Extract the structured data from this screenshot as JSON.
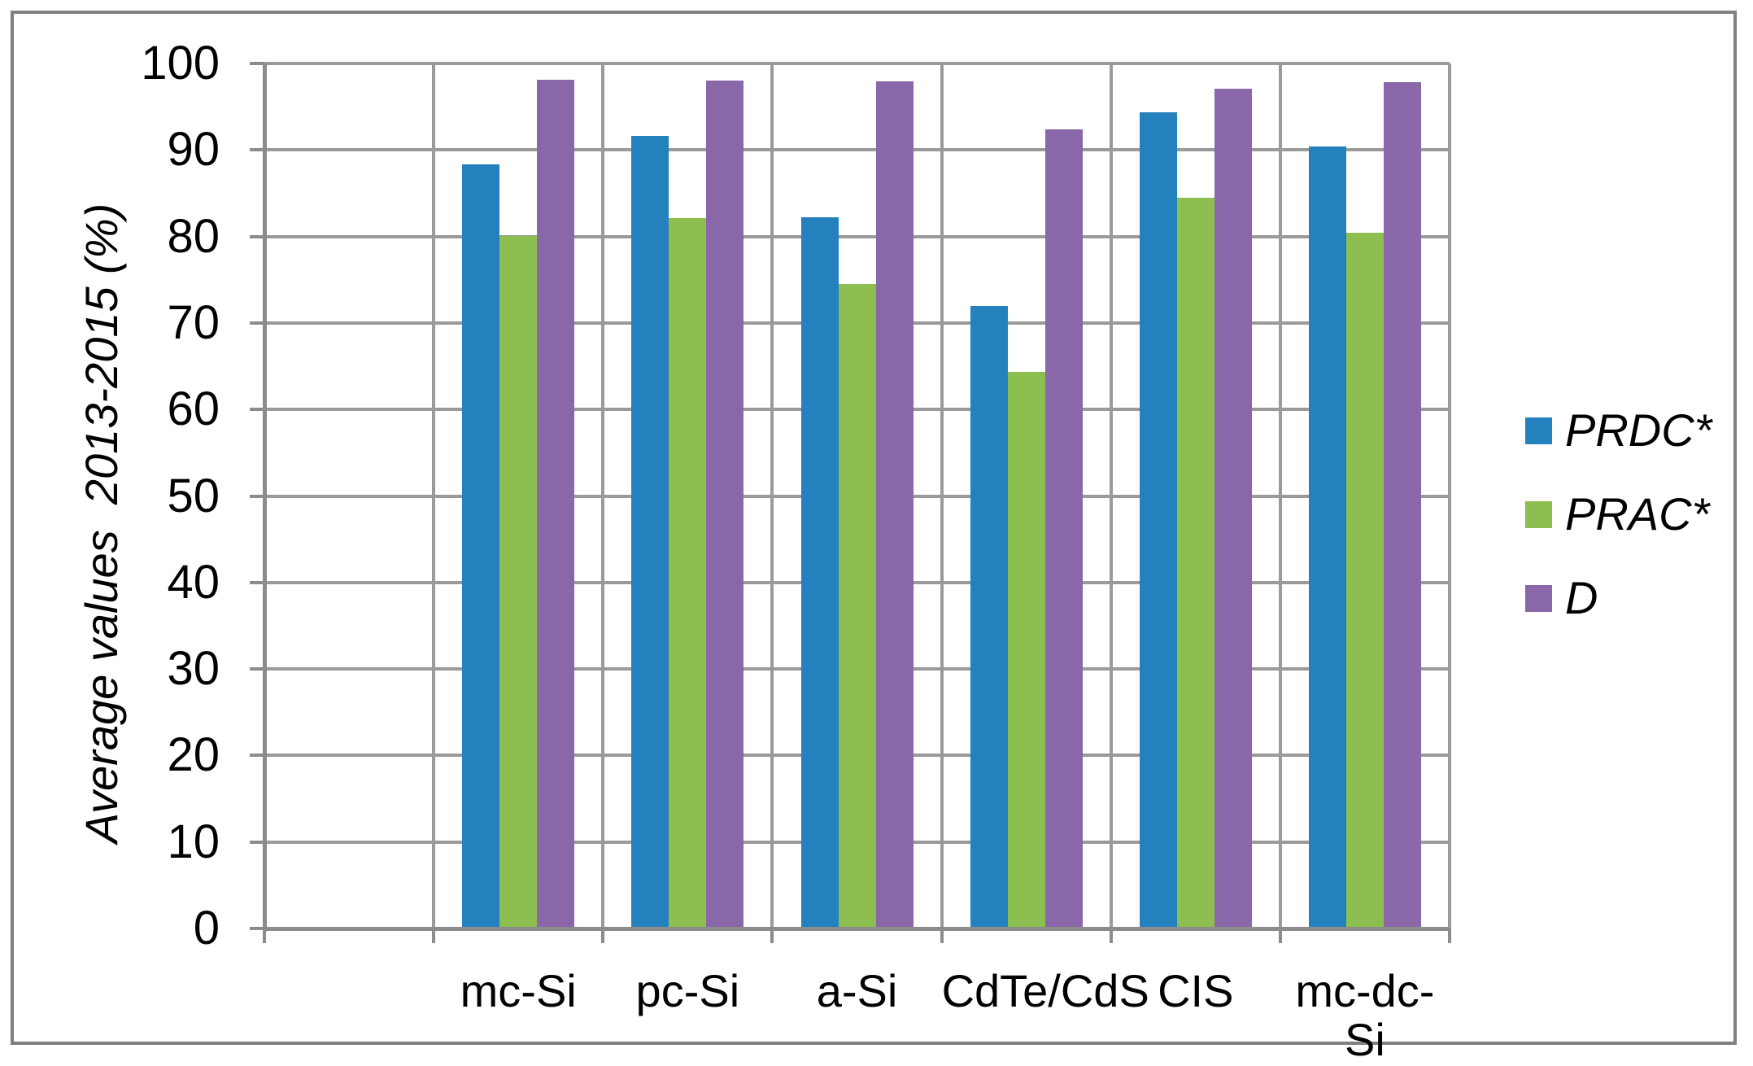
{
  "figure": {
    "background": "#ffffff",
    "border_color": "#7f7f7f",
    "gridline_color": "#9a9a9a",
    "axis_color": "#8c8c8c",
    "text_color": "#000000"
  },
  "chart_data": {
    "type": "bar",
    "title": "",
    "xlabel": "",
    "ylabel": "Average values  2013-2015 (%)",
    "ylim": [
      0,
      100
    ],
    "ytick_step": 10,
    "ytick_labels": [
      "0",
      "10",
      "20",
      "30",
      "40",
      "50",
      "60",
      "70",
      "80",
      "90",
      "100"
    ],
    "grid": "horizontal gridlines every 10 and vertical gridlines at category boundaries",
    "legend_position": "right",
    "legend_empty_leading_slot": true,
    "categories": [
      "mc-Si",
      "pc-Si",
      "a-Si",
      "CdTe/CdS",
      "CIS",
      "mc-dc-Si"
    ],
    "series": [
      {
        "name": "PRDC*",
        "color": "#2481be",
        "values": [
          88.3,
          91.6,
          82.2,
          72.0,
          94.4,
          90.4
        ]
      },
      {
        "name": "PRAC*",
        "color": "#8dbe50",
        "values": [
          80.1,
          82.1,
          74.5,
          64.3,
          84.5,
          80.4
        ]
      },
      {
        "name": "D",
        "color": "#8967a9",
        "values": [
          98.1,
          98.0,
          97.9,
          92.4,
          97.1,
          97.8
        ]
      }
    ]
  },
  "legend": {
    "items": [
      {
        "label": "PRDC*",
        "color": "#2481be"
      },
      {
        "label": "PRAC*",
        "color": "#8dbe50"
      },
      {
        "label": "D",
        "color": "#8967a9"
      }
    ]
  }
}
